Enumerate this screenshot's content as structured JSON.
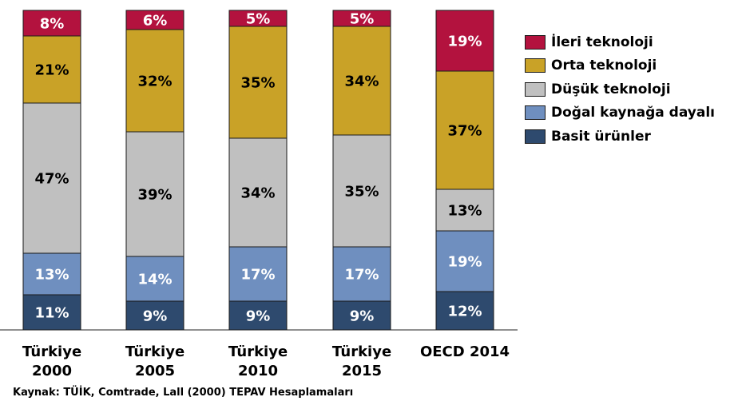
{
  "chart_data": {
    "type": "bar",
    "stacked": true,
    "normalized_percent": true,
    "categories": [
      [
        "Türkiye",
        "2000"
      ],
      [
        "Türkiye",
        "2005"
      ],
      [
        "Türkiye",
        "2010"
      ],
      [
        "Türkiye",
        "2015"
      ],
      [
        "OECD 2014"
      ]
    ],
    "series": [
      {
        "name": "Basit ürünler",
        "color": "#2e4a6e",
        "label_color": "#ffffff",
        "values": [
          11,
          9,
          9,
          9,
          12
        ]
      },
      {
        "name": "Doğal kaynağa dayalı",
        "color": "#6f8fbf",
        "label_color": "#ffffff",
        "values": [
          13,
          14,
          17,
          17,
          19
        ]
      },
      {
        "name": "Düşük teknoloji",
        "color": "#c0c0c0",
        "label_color": "#000000",
        "values": [
          47,
          39,
          34,
          35,
          13
        ]
      },
      {
        "name": "Orta teknoloji",
        "color": "#c9a227",
        "label_color": "#000000",
        "values": [
          21,
          32,
          35,
          34,
          37
        ]
      },
      {
        "name": "İleri teknoloji",
        "color": "#b3123e",
        "label_color": "#ffffff",
        "values": [
          8,
          6,
          5,
          5,
          19
        ]
      }
    ],
    "value_suffix": "%",
    "legend_position": "right",
    "grid": false
  },
  "legend_order": [
    4,
    3,
    2,
    1,
    0
  ],
  "source_text": "Kaynak: TÜİK, Comtrade, Lall (2000) TEPAV Hesaplamaları"
}
